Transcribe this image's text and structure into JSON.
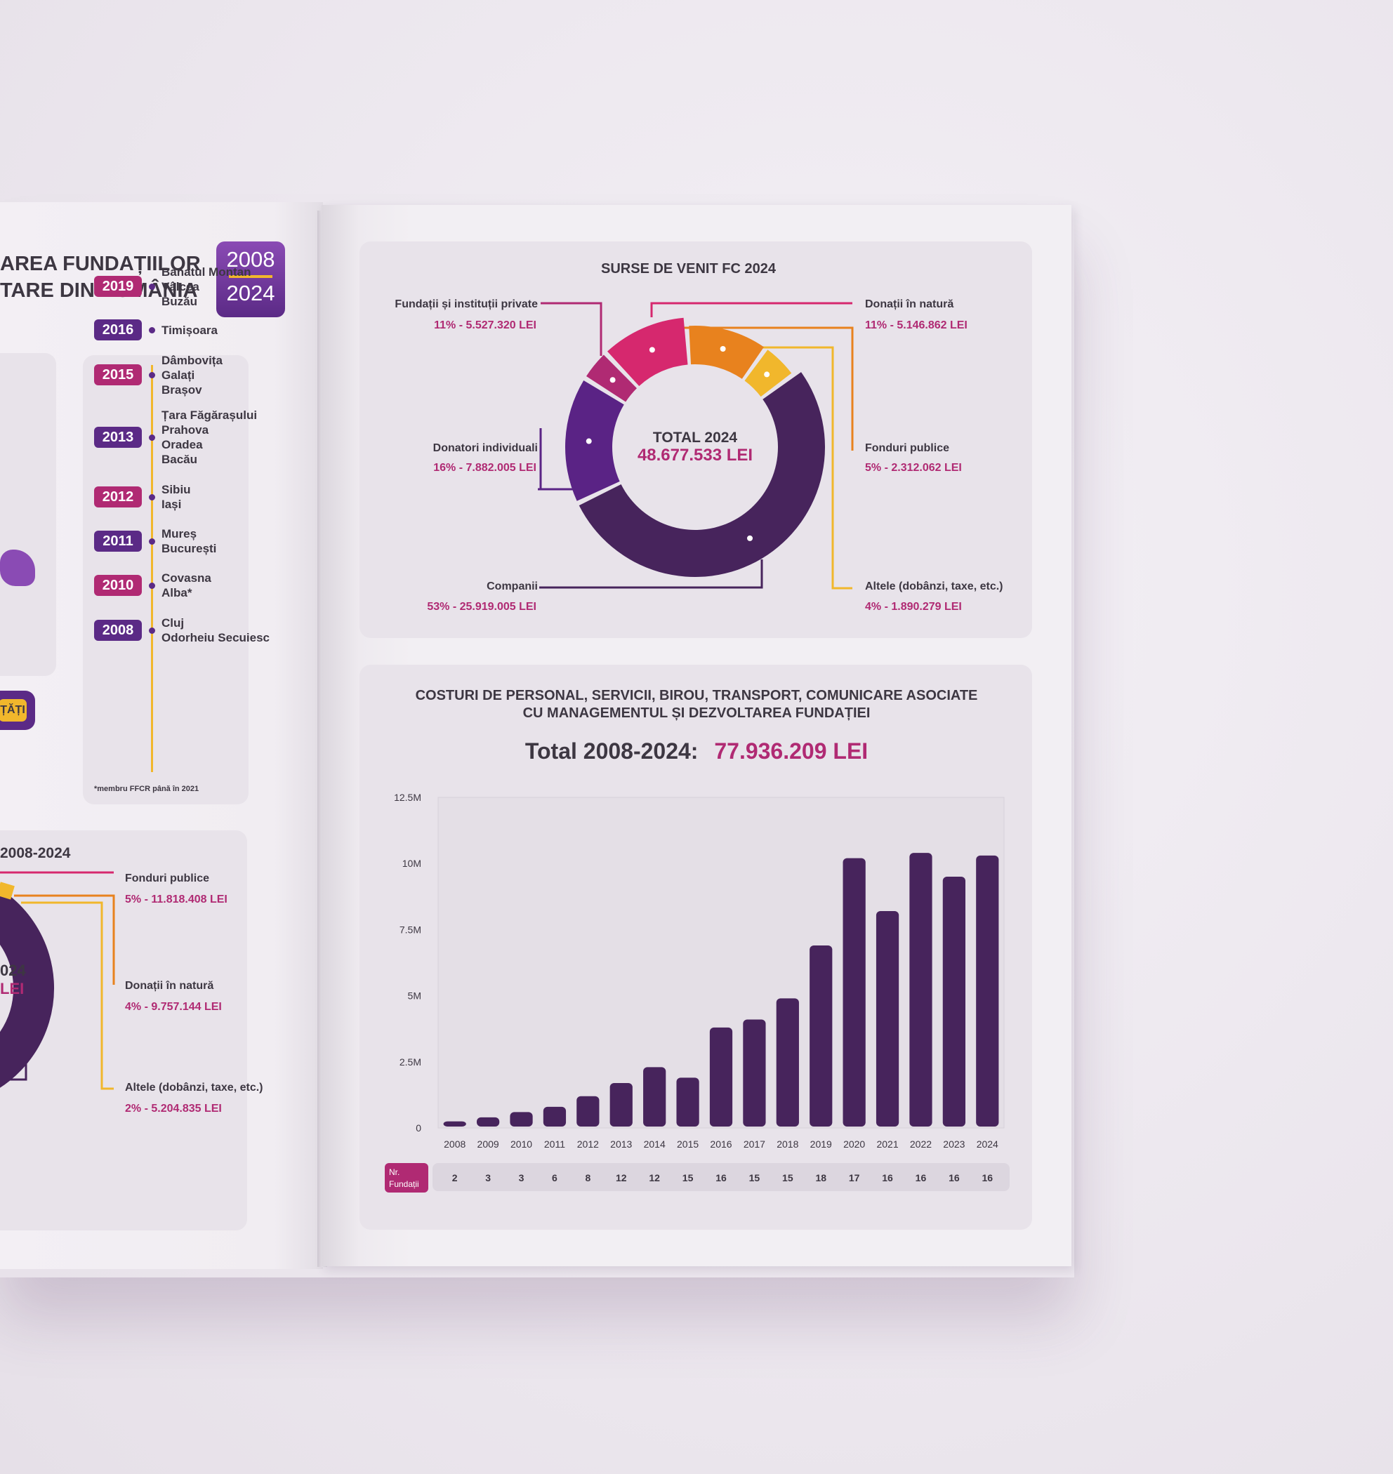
{
  "left_page": {
    "title_line1": "AREA FUNDAȚIILOR",
    "title_line2": "TARE DIN ROMÂNIA",
    "badge_year_start": "2008",
    "badge_year_end": "2024",
    "timeline": [
      {
        "year": "2019",
        "cities": [
          "Banatul Montan",
          "Vâlcea",
          "Buzău"
        ],
        "color": "#b02a73"
      },
      {
        "year": "2016",
        "cities": [
          "Timișoara"
        ],
        "color": "#5b2a86"
      },
      {
        "year": "2015",
        "cities": [
          "Dâmbovița",
          "Galați",
          "Brașov"
        ],
        "color": "#b02a73"
      },
      {
        "year": "2013",
        "cities": [
          "Țara Făgărașului",
          "Prahova",
          "Oradea",
          "Bacău"
        ],
        "color": "#5b2a86"
      },
      {
        "year": "2012",
        "cities": [
          "Sibiu",
          "Iași"
        ],
        "color": "#b02a73"
      },
      {
        "year": "2011",
        "cities": [
          "Mureș",
          "București"
        ],
        "color": "#5b2a86"
      },
      {
        "year": "2010",
        "cities": [
          "Covasna",
          "Alba*"
        ],
        "color": "#b02a73"
      },
      {
        "year": "2008",
        "cities": [
          "Cluj",
          "Odorheiu Secuiesc"
        ],
        "color": "#5b2a86"
      }
    ],
    "footnote": "*membru FFCR până în 2021",
    "button_label": "ȚĂȚI",
    "section2_title": "2008-2024",
    "donut_center_line1": "024",
    "donut_center_line2": "LEI",
    "labels": [
      {
        "name": "Fonduri publice",
        "value": "5% - 11.818.408 LEI"
      },
      {
        "name": "Donații în natură",
        "value": "4% - 9.757.144 LEI"
      },
      {
        "name": "Altele (dobânzi, taxe, etc.)",
        "value": "2% - 5.204.835 LEI"
      }
    ]
  },
  "donut_chart": {
    "title": "SURSE DE VENIT FC 2024",
    "center_label": "TOTAL 2024",
    "center_value": "48.677.533 LEI",
    "segments": [
      {
        "name": "Fundații și instituții private",
        "value_label": "11% - 5.527.320 LEI",
        "percent": 11,
        "color": "#d6286e"
      },
      {
        "name": "Donații în natură",
        "value_label": "11% - 5.146.862 LEI",
        "percent": 11,
        "color": "#e8821e"
      },
      {
        "name": "Fonduri publice",
        "value_label": "5% - 2.312.062 LEI",
        "percent": 5,
        "color": "#f1b72c"
      },
      {
        "name": "Donatori individuali",
        "value_label": "16% - 7.882.005 LEI",
        "percent": 16,
        "color": "#5a2385"
      },
      {
        "name": "Companii",
        "value_label": "53% - 25.919.005 LEI",
        "percent": 53,
        "color": "#47245c"
      },
      {
        "name": "Altele (dobânzi, taxe, etc.)",
        "value_label": "4% - 1.890.279 LEI",
        "percent": 4,
        "color": "#b02a73"
      }
    ]
  },
  "bar_section": {
    "title_line1": "COSTURI DE PERSONAL, SERVICII, BIROU, TRANSPORT, COMUNICARE ASOCIATE",
    "title_line2": "CU MANAGEMENTUL ȘI DEZVOLTAREA FUNDAȚIEI",
    "total_label": "Total 2008-2024:",
    "total_value": "77.936.209 LEI",
    "count_label": "Nr. Fundații"
  },
  "chart_data": {
    "type": "bar",
    "title": "COSTURI DE PERSONAL, SERVICII, BIROU, TRANSPORT, COMUNICARE ASOCIATE CU MANAGEMENTUL ȘI DEZVOLTAREA FUNDAȚIEI",
    "categories": [
      "2008",
      "2009",
      "2010",
      "2011",
      "2012",
      "2013",
      "2014",
      "2015",
      "2016",
      "2017",
      "2018",
      "2019",
      "2020",
      "2021",
      "2022",
      "2023",
      "2024"
    ],
    "values": [
      250000,
      400000,
      600000,
      800000,
      1200000,
      1700000,
      2300000,
      1900000,
      3800000,
      4100000,
      4900000,
      6900000,
      10200000,
      8200000,
      10400000,
      9500000,
      10300000
    ],
    "counts": [
      "2",
      "3",
      "3",
      "6",
      "8",
      "12",
      "12",
      "15",
      "16",
      "15",
      "15",
      "18",
      "17",
      "16",
      "16",
      "16",
      "16"
    ],
    "ylim": [
      0,
      12500000
    ],
    "yticks": [
      {
        "v": 0,
        "label": "0"
      },
      {
        "v": 2500000,
        "label": "2.5M"
      },
      {
        "v": 5000000,
        "label": "5M"
      },
      {
        "v": 7500000,
        "label": "7.5M"
      },
      {
        "v": 10000000,
        "label": "10M"
      },
      {
        "v": 12500000,
        "label": "12.5M"
      }
    ],
    "bar_color": "#47245c"
  }
}
